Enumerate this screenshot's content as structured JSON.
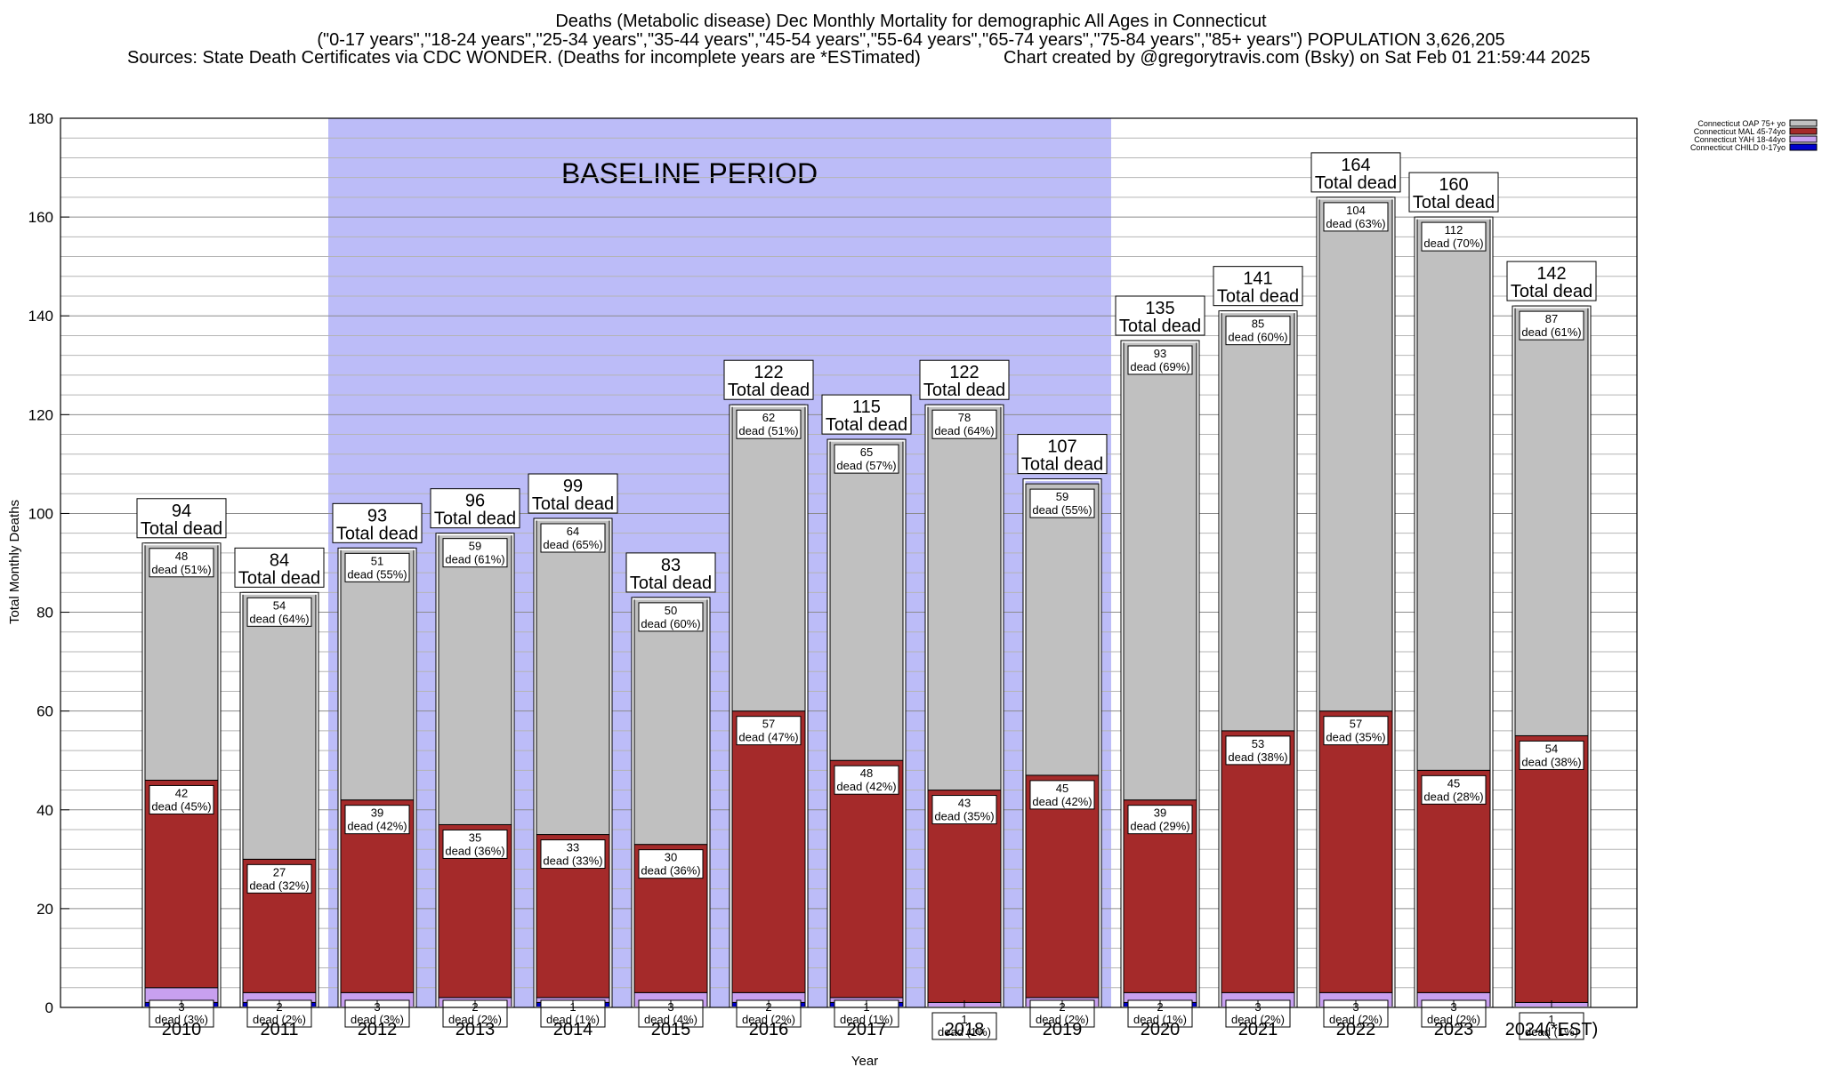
{
  "header": {
    "line1": "Deaths (Metabolic disease) Dec Monthly Mortality for demographic All Ages in Connecticut",
    "line2": "(\"0-17 years\",\"18-24 years\",\"25-34 years\",\"35-44 years\",\"45-54 years\",\"55-64 years\",\"65-74 years\",\"75-84 years\",\"85+ years\") POPULATION 3,626,205",
    "line3a": "Sources: State Death Certificates via CDC WONDER. (Deaths for incomplete years are *ESTimated)",
    "line3b": "Chart created by @gregorytravis.com (Bsky) on Sat Feb 01 21:59:44 2025"
  },
  "chart_data": {
    "type": "bar",
    "stacked": true,
    "xlabel": "Year",
    "ylabel": "Total Monthly Deaths",
    "ylim": [
      0,
      180
    ],
    "yticks": [
      0,
      20,
      40,
      60,
      80,
      100,
      120,
      140,
      160,
      180
    ],
    "grid": true,
    "legend_position": "top-right",
    "baseline_label": "BASELINE PERIOD",
    "baseline_range": [
      "2012",
      "2019"
    ],
    "total_label": "Total dead",
    "dead_label": "dead",
    "categories": [
      "2010",
      "2011",
      "2012",
      "2013",
      "2014",
      "2015",
      "2016",
      "2017",
      "2018",
      "2019",
      "2020",
      "2021",
      "2022",
      "2023",
      "2024(*EST)"
    ],
    "totals": [
      94,
      84,
      93,
      96,
      99,
      83,
      122,
      115,
      122,
      107,
      135,
      141,
      164,
      160,
      142
    ],
    "series": [
      {
        "name": "Connecticut CHILD 0-17yo",
        "color": "#0000cc",
        "values": [
          1,
          1,
          0,
          0,
          1,
          0,
          1,
          1,
          0,
          0,
          1,
          0,
          0,
          0,
          0
        ],
        "pct": []
      },
      {
        "name": "Connecticut YAH 18-44yo",
        "color": "#c8a0f0",
        "values": [
          3,
          2,
          3,
          2,
          1,
          3,
          2,
          1,
          1,
          2,
          2,
          3,
          3,
          3,
          1
        ],
        "pct": [
          "3%",
          "2%",
          "3%",
          "2%",
          "1%",
          "4%",
          "2%",
          "1%",
          "1%",
          "2%",
          "1%",
          "2%",
          "2%",
          "2%",
          "1%"
        ]
      },
      {
        "name": "Connecticut MAL 45-74yo",
        "color": "#a52a2a",
        "values": [
          42,
          27,
          39,
          35,
          33,
          30,
          57,
          48,
          43,
          45,
          39,
          53,
          57,
          45,
          54
        ],
        "pct": [
          "45%",
          "32%",
          "42%",
          "36%",
          "33%",
          "36%",
          "47%",
          "42%",
          "35%",
          "42%",
          "29%",
          "38%",
          "35%",
          "28%",
          "38%"
        ]
      },
      {
        "name": "Connecticut OAP 75+ yo",
        "color": "#c0c0c0",
        "values": [
          48,
          54,
          51,
          59,
          64,
          50,
          62,
          65,
          78,
          59,
          93,
          85,
          104,
          112,
          87
        ],
        "pct": [
          "51%",
          "64%",
          "55%",
          "61%",
          "65%",
          "60%",
          "51%",
          "57%",
          "64%",
          "55%",
          "69%",
          "60%",
          "63%",
          "70%",
          "61%"
        ]
      }
    ]
  }
}
